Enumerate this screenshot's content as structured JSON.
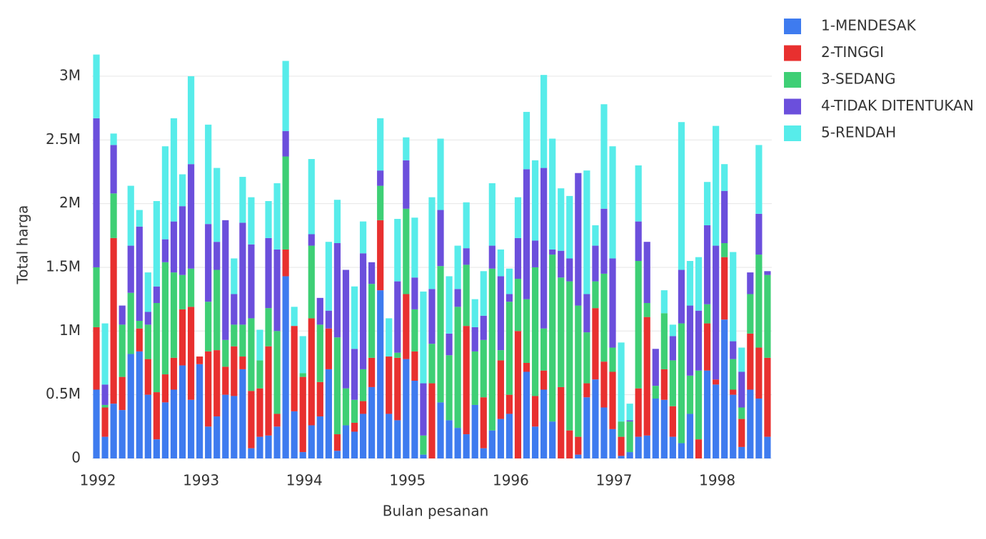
{
  "chart_data": {
    "type": "stacked_bar",
    "x_label": "Bulan pesanan",
    "y_label": "Total harga",
    "categories": [
      "1992",
      null,
      null,
      null,
      null,
      null,
      null,
      null,
      null,
      null,
      null,
      null,
      "1993",
      null,
      null,
      null,
      null,
      null,
      null,
      null,
      null,
      null,
      null,
      null,
      "1994",
      null,
      null,
      null,
      null,
      null,
      null,
      null,
      null,
      null,
      null,
      null,
      "1995",
      null,
      null,
      null,
      null,
      null,
      null,
      null,
      null,
      null,
      null,
      null,
      "1996",
      null,
      null,
      null,
      null,
      null,
      null,
      null,
      null,
      null,
      null,
      null,
      "1997",
      null,
      null,
      null,
      null,
      null,
      null,
      null,
      null,
      null,
      null,
      null,
      "1998",
      null,
      null,
      null,
      null,
      null,
      null
    ],
    "series": [
      {
        "name": "1-MENDESAK",
        "color": "#3e7bef",
        "values": [
          540000,
          170000,
          430000,
          380000,
          820000,
          840000,
          500000,
          150000,
          440000,
          540000,
          730000,
          460000,
          740000,
          250000,
          330000,
          500000,
          490000,
          700000,
          80000,
          170000,
          180000,
          250000,
          1430000,
          370000,
          50000,
          260000,
          330000,
          700000,
          60000,
          260000,
          210000,
          350000,
          560000,
          1320000,
          350000,
          300000,
          780000,
          610000,
          30000,
          0,
          440000,
          300000,
          240000,
          190000,
          420000,
          80000,
          220000,
          310000,
          350000,
          0,
          680000,
          250000,
          540000,
          290000,
          0,
          0,
          30000,
          480000,
          620000,
          400000,
          230000,
          20000,
          50000,
          170000,
          180000,
          470000,
          460000,
          170000,
          120000,
          350000,
          0,
          690000,
          580000,
          1090000,
          500000,
          90000,
          540000,
          470000,
          170000
        ]
      },
      {
        "name": "2-TINGGI",
        "color": "#e8302f",
        "values": [
          490000,
          230000,
          1300000,
          260000,
          0,
          180000,
          280000,
          370000,
          220000,
          250000,
          440000,
          730000,
          60000,
          590000,
          520000,
          220000,
          390000,
          100000,
          450000,
          380000,
          700000,
          100000,
          210000,
          670000,
          590000,
          840000,
          270000,
          320000,
          130000,
          0,
          70000,
          100000,
          230000,
          550000,
          450000,
          490000,
          510000,
          230000,
          0,
          590000,
          0,
          0,
          0,
          850000,
          0,
          400000,
          0,
          460000,
          150000,
          1000000,
          70000,
          240000,
          150000,
          0,
          560000,
          220000,
          140000,
          110000,
          560000,
          360000,
          450000,
          150000,
          0,
          380000,
          930000,
          0,
          240000,
          240000,
          0,
          0,
          150000,
          370000,
          40000,
          490000,
          40000,
          220000,
          440000,
          400000,
          620000
        ]
      },
      {
        "name": "3-SEDANG",
        "color": "#3ecf75",
        "values": [
          470000,
          20000,
          350000,
          410000,
          480000,
          60000,
          270000,
          700000,
          880000,
          670000,
          270000,
          300000,
          0,
          390000,
          630000,
          210000,
          170000,
          250000,
          570000,
          220000,
          300000,
          650000,
          730000,
          0,
          30000,
          570000,
          450000,
          0,
          760000,
          290000,
          180000,
          250000,
          580000,
          270000,
          0,
          40000,
          670000,
          330000,
          150000,
          310000,
          1070000,
          510000,
          950000,
          480000,
          420000,
          450000,
          1270000,
          80000,
          730000,
          410000,
          500000,
          1010000,
          330000,
          1310000,
          860000,
          1170000,
          1030000,
          400000,
          210000,
          690000,
          190000,
          120000,
          240000,
          1000000,
          110000,
          100000,
          440000,
          360000,
          940000,
          300000,
          540000,
          150000,
          0,
          110000,
          240000,
          90000,
          310000,
          730000,
          650000
        ]
      },
      {
        "name": "4-TIDAK DITENTUKAN",
        "color": "#6b4fdc",
        "values": [
          1170000,
          160000,
          380000,
          150000,
          370000,
          740000,
          100000,
          130000,
          180000,
          400000,
          540000,
          820000,
          0,
          610000,
          220000,
          940000,
          240000,
          800000,
          580000,
          0,
          550000,
          640000,
          200000,
          0,
          0,
          90000,
          210000,
          140000,
          740000,
          930000,
          400000,
          910000,
          170000,
          120000,
          0,
          560000,
          380000,
          250000,
          410000,
          430000,
          440000,
          170000,
          140000,
          130000,
          190000,
          190000,
          180000,
          580000,
          60000,
          320000,
          1020000,
          210000,
          1260000,
          40000,
          210000,
          180000,
          1040000,
          300000,
          280000,
          510000,
          700000,
          0,
          10000,
          310000,
          480000,
          290000,
          0,
          190000,
          420000,
          550000,
          470000,
          620000,
          1050000,
          410000,
          140000,
          280000,
          170000,
          320000,
          30000
        ]
      },
      {
        "name": "5-RENDAH",
        "color": "#57ecea",
        "values": [
          500000,
          480000,
          90000,
          0,
          470000,
          130000,
          310000,
          670000,
          730000,
          810000,
          250000,
          690000,
          0,
          780000,
          580000,
          0,
          280000,
          360000,
          370000,
          240000,
          290000,
          520000,
          550000,
          150000,
          290000,
          590000,
          0,
          540000,
          340000,
          0,
          490000,
          250000,
          0,
          410000,
          300000,
          490000,
          180000,
          470000,
          720000,
          720000,
          560000,
          450000,
          340000,
          360000,
          220000,
          350000,
          490000,
          210000,
          200000,
          320000,
          450000,
          630000,
          730000,
          870000,
          490000,
          490000,
          0,
          970000,
          160000,
          820000,
          880000,
          620000,
          130000,
          440000,
          0,
          0,
          180000,
          90000,
          1160000,
          350000,
          420000,
          340000,
          940000,
          210000,
          700000,
          190000,
          0,
          540000,
          0
        ]
      }
    ],
    "ylim": [
      0,
      3250000
    ],
    "yticks": [
      0,
      {
        "value": 500000,
        "label": "0.5M"
      },
      {
        "value": 1000000,
        "label": "1M"
      },
      {
        "value": 1500000,
        "label": "1.5M"
      },
      {
        "value": 2000000,
        "label": "2M"
      },
      {
        "value": 2500000,
        "label": "2.5M"
      },
      {
        "value": 3000000,
        "label": "3M"
      }
    ],
    "grid": true,
    "legend": "right"
  }
}
